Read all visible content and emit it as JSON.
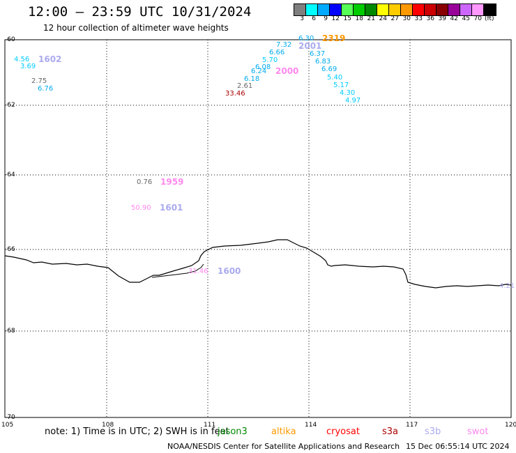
{
  "header": {
    "title": "12:00 – 23:59 UTC 10/31/2024",
    "subtitle": "12 hour collection of altimeter wave heights"
  },
  "legend": {
    "swatches": [
      {
        "label": "3",
        "color": "#7f7f7f"
      },
      {
        "label": "6",
        "color": "#00ffff"
      },
      {
        "label": "9",
        "color": "#00aaff"
      },
      {
        "label": "12",
        "color": "#0000ff"
      },
      {
        "label": "15",
        "color": "#55ff55"
      },
      {
        "label": "18",
        "color": "#00cc00"
      },
      {
        "label": "21",
        "color": "#008800"
      },
      {
        "label": "24",
        "color": "#ffff00"
      },
      {
        "label": "27",
        "color": "#ffcc00"
      },
      {
        "label": "30",
        "color": "#ff9900"
      },
      {
        "label": "33",
        "color": "#ff0000"
      },
      {
        "label": "36",
        "color": "#cc0000"
      },
      {
        "label": "39",
        "color": "#880000"
      },
      {
        "label": "42",
        "color": "#990099"
      },
      {
        "label": "45",
        "color": "#cc66ff"
      },
      {
        "label": "70",
        "color": "#ff99ff"
      },
      {
        "label": "",
        "color": "#000000"
      }
    ],
    "unit": "(ft)"
  },
  "axes": {
    "lat_ticks": [
      "-60",
      "-62",
      "-64",
      "-66",
      "-68",
      "-70"
    ],
    "lon_ticks": [
      "105",
      "108",
      "111",
      "114",
      "117",
      "120"
    ]
  },
  "wave_labels": [
    {
      "text": "4.56",
      "color": "#00ccff"
    },
    {
      "text": "3.69",
      "color": "#00ccff"
    },
    {
      "text": "2.75",
      "color": "#666666"
    },
    {
      "text": "6.76",
      "color": "#00aaee"
    },
    {
      "text": "6.30",
      "color": "#00aaee"
    },
    {
      "text": "7.32",
      "color": "#00aaee"
    },
    {
      "text": "6.66",
      "color": "#00aaee"
    },
    {
      "text": "6.37",
      "color": "#00aaee"
    },
    {
      "text": "5.70",
      "color": "#00ccff"
    },
    {
      "text": "6.83",
      "color": "#00aaee"
    },
    {
      "text": "6.08",
      "color": "#00aaee"
    },
    {
      "text": "6.24",
      "color": "#00aaee"
    },
    {
      "text": "6.69",
      "color": "#00aaee"
    },
    {
      "text": "6.18",
      "color": "#00aaee"
    },
    {
      "text": "5.40",
      "color": "#00ccff"
    },
    {
      "text": "2.61",
      "color": "#666666"
    },
    {
      "text": "5.17",
      "color": "#00ccff"
    },
    {
      "text": "33.46",
      "color": "#aa0000"
    },
    {
      "text": "4.30",
      "color": "#00ccff"
    },
    {
      "text": "4.97",
      "color": "#00ccff"
    },
    {
      "text": "0.76",
      "color": "#666666"
    },
    {
      "text": "50.90",
      "color": "#ff88ee"
    },
    {
      "text": "31.46",
      "color": "#ff88ee"
    },
    {
      "text": "4.21",
      "color": "#aaaaee"
    }
  ],
  "pass_labels": [
    {
      "text": "1602",
      "color": "#aaaaee"
    },
    {
      "text": "2319",
      "color": "#ff9900"
    },
    {
      "text": "2001",
      "color": "#aaaaee"
    },
    {
      "text": "2000",
      "color": "#ff88ee"
    },
    {
      "text": "1959",
      "color": "#ff88ee"
    },
    {
      "text": "1601",
      "color": "#aaaaee"
    },
    {
      "text": "1600",
      "color": "#aaaaee"
    }
  ],
  "footer": {
    "note": "note:  1) Time is in UTC;  2) SWH is in feet",
    "satellites": [
      {
        "name": "jason3",
        "color": "#008800"
      },
      {
        "name": "altika",
        "color": "#ff9900"
      },
      {
        "name": "cryosat",
        "color": "#ff0000"
      },
      {
        "name": "s3a",
        "color": "#aa0000"
      },
      {
        "name": "s3b",
        "color": "#aaaaee"
      },
      {
        "name": "swot",
        "color": "#ff88ee"
      }
    ],
    "credit": "NOAA/NESDIS Center for Satellite Applications and Research",
    "timestamp": "15 Dec 06:55:14 UTC 2024"
  }
}
